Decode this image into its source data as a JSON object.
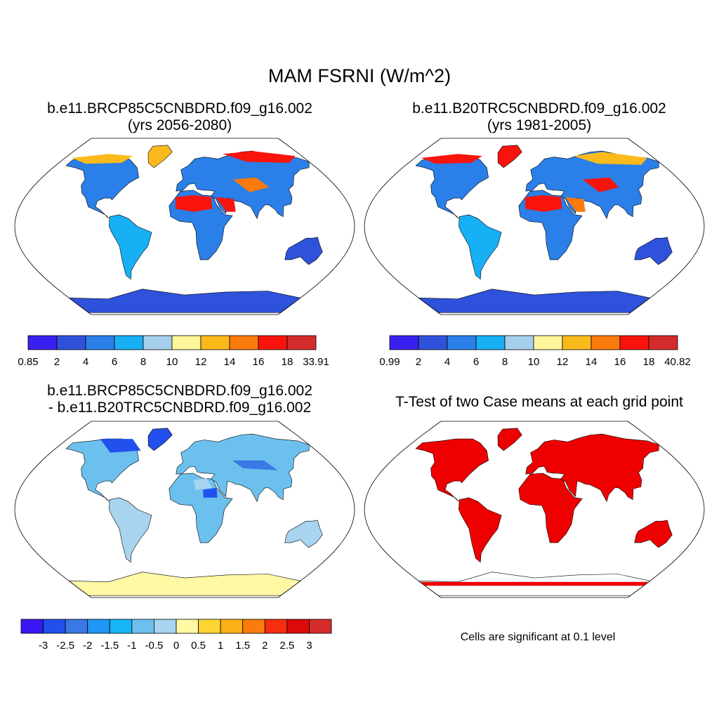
{
  "title": "MAM FSRNI (W/m^2)",
  "panels": [
    {
      "id": "p1",
      "title_line1": "b.e11.BRCP85C5CNBDRD.f09_g16.002",
      "title_line2": "(yrs 2056-2080)",
      "colorbar": {
        "labels": [
          "0.85",
          "2",
          "4",
          "6",
          "8",
          "10",
          "12",
          "14",
          "16",
          "18",
          "33.91"
        ],
        "colors": [
          "#3a20f0",
          "#2f52dc",
          "#2a7fe8",
          "#17b0f5",
          "#a6cfee",
          "#fff59a",
          "#fbba1c",
          "#fa7a0c",
          "#f8140c",
          "#d42b2b"
        ]
      }
    },
    {
      "id": "p2",
      "title_line1": "b.e11.B20TRC5CNBDRD.f09_g16.002",
      "title_line2": "(yrs 1981-2005)",
      "colorbar": {
        "labels": [
          "0.99",
          "2",
          "4",
          "6",
          "8",
          "10",
          "12",
          "14",
          "16",
          "18",
          "40.82"
        ],
        "colors": [
          "#3a20f0",
          "#2f52dc",
          "#2a7fe8",
          "#17b0f5",
          "#a6cfee",
          "#fff59a",
          "#fbba1c",
          "#fa7a0c",
          "#f8140c",
          "#d42b2b"
        ]
      }
    },
    {
      "id": "p3",
      "title_line1": "b.e11.BRCP85C5CNBDRD.f09_g16.002",
      "title_line2": "- b.e11.B20TRC5CNBDRD.f09_g16.002",
      "colorbar": {
        "labels": [
          "-3",
          "-2.5",
          "-2",
          "-1.5",
          "-1",
          "-0.5",
          "0",
          "0.5",
          "1",
          "1.5",
          "2",
          "2.5",
          "3"
        ],
        "colors": [
          "#3a18f5",
          "#2250ec",
          "#3a78e4",
          "#2096f6",
          "#14b6f6",
          "#6cc0ee",
          "#a8d4f0",
          "#fff8a4",
          "#fdd634",
          "#fbb016",
          "#fa7c0c",
          "#f52e0e",
          "#dc0a0a",
          "#d42b2b"
        ]
      }
    },
    {
      "id": "p4",
      "title_line1": "T-Test of two Case means at each grid point",
      "note": "Cells are significant at 0.1 level",
      "color": "#ee0000"
    }
  ]
}
